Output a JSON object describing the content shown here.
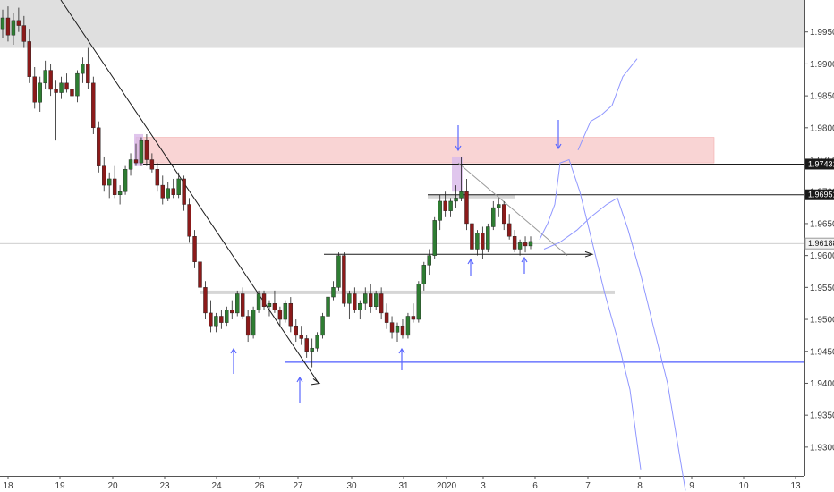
{
  "chart_data": {
    "type": "candlestick",
    "grid": false,
    "ylim": [
      1.9255,
      2.0
    ],
    "x_ticks": [
      "18",
      "19",
      "20",
      "23",
      "24",
      "26",
      "27",
      "30",
      "31",
      "2020",
      "3",
      "6",
      "7",
      "8",
      "9",
      "10",
      "13"
    ],
    "y_ticks": [
      "1.93000",
      "1.93500",
      "1.94000",
      "1.94500",
      "1.95000",
      "1.95500",
      "1.96000",
      "1.96500",
      "1.97000",
      "1.97500",
      "1.98000",
      "1.98500",
      "1.99000",
      "1.99500"
    ],
    "price_labels": [
      {
        "text": "1.97431",
        "value": 1.97431,
        "style": "dark"
      },
      {
        "text": "1.96951",
        "value": 1.96951,
        "style": "dark"
      },
      {
        "text": "1.96188",
        "value": 1.96188,
        "style": "light"
      }
    ],
    "candles": [
      [
        1.9955,
        1.9985,
        1.994,
        1.9972
      ],
      [
        1.9972,
        1.999,
        1.9935,
        1.9945
      ],
      [
        1.9945,
        1.998,
        1.993,
        1.9968
      ],
      [
        1.9968,
        1.9988,
        1.995,
        1.996
      ],
      [
        1.996,
        1.9975,
        1.9925,
        1.9935
      ],
      [
        1.9935,
        1.9955,
        1.987,
        1.988
      ],
      [
        1.988,
        1.9895,
        1.983,
        1.984
      ],
      [
        1.984,
        1.988,
        1.9825,
        1.987
      ],
      [
        1.987,
        1.9905,
        1.986,
        1.989
      ],
      [
        1.989,
        1.99,
        1.985,
        1.986
      ],
      [
        1.986,
        1.9875,
        1.978,
        1.9855
      ],
      [
        1.9855,
        1.988,
        1.9845,
        1.987
      ],
      [
        1.987,
        1.9885,
        1.9855,
        1.986
      ],
      [
        1.986,
        1.987,
        1.9845,
        1.985
      ],
      [
        1.985,
        1.989,
        1.984,
        1.9885
      ],
      [
        1.9885,
        1.991,
        1.987,
        1.99
      ],
      [
        1.99,
        1.9925,
        1.986,
        1.987
      ],
      [
        1.987,
        1.988,
        1.979,
        1.98
      ],
      [
        1.98,
        1.981,
        1.973,
        1.974
      ],
      [
        1.974,
        1.9755,
        1.97,
        1.971
      ],
      [
        1.971,
        1.973,
        1.969,
        1.972
      ],
      [
        1.972,
        1.974,
        1.969,
        1.9695
      ],
      [
        1.9695,
        1.971,
        1.968,
        1.97
      ],
      [
        1.97,
        1.974,
        1.9695,
        1.9735
      ],
      [
        1.9735,
        1.976,
        1.9725,
        1.975
      ],
      [
        1.975,
        1.9775,
        1.974,
        1.9745
      ],
      [
        1.9745,
        1.9785,
        1.974,
        1.978
      ],
      [
        1.978,
        1.979,
        1.974,
        1.975
      ],
      [
        1.975,
        1.976,
        1.973,
        1.9735
      ],
      [
        1.9735,
        1.9745,
        1.97,
        1.971
      ],
      [
        1.971,
        1.9725,
        1.968,
        1.969
      ],
      [
        1.969,
        1.9715,
        1.9685,
        1.9705
      ],
      [
        1.9705,
        1.972,
        1.969,
        1.9695
      ],
      [
        1.9695,
        1.973,
        1.969,
        1.972
      ],
      [
        1.972,
        1.9725,
        1.967,
        1.968
      ],
      [
        1.968,
        1.969,
        1.962,
        1.963
      ],
      [
        1.963,
        1.964,
        1.958,
        1.959
      ],
      [
        1.959,
        1.96,
        1.954,
        1.955
      ],
      [
        1.955,
        1.956,
        1.95,
        1.951
      ],
      [
        1.951,
        1.953,
        1.948,
        1.949
      ],
      [
        1.949,
        1.951,
        1.948,
        1.9505
      ],
      [
        1.9505,
        1.9515,
        1.9485,
        1.9495
      ],
      [
        1.9495,
        1.952,
        1.949,
        1.9515
      ],
      [
        1.9515,
        1.953,
        1.95,
        1.951
      ],
      [
        1.951,
        1.9545,
        1.9505,
        1.954
      ],
      [
        1.954,
        1.955,
        1.95,
        1.9505
      ],
      [
        1.9505,
        1.9515,
        1.9465,
        1.9475
      ],
      [
        1.9475,
        1.952,
        1.947,
        1.9515
      ],
      [
        1.9515,
        1.9545,
        1.951,
        1.954
      ],
      [
        1.954,
        1.9545,
        1.9515,
        1.952
      ],
      [
        1.952,
        1.953,
        1.9505,
        1.9525
      ],
      [
        1.9525,
        1.9545,
        1.951,
        1.9515
      ],
      [
        1.9515,
        1.952,
        1.949,
        1.95
      ],
      [
        1.95,
        1.953,
        1.9495,
        1.9525
      ],
      [
        1.9525,
        1.9535,
        1.948,
        1.949
      ],
      [
        1.949,
        1.95,
        1.9465,
        1.9475
      ],
      [
        1.9475,
        1.949,
        1.946,
        1.947
      ],
      [
        1.947,
        1.9475,
        1.944,
        1.945
      ],
      [
        1.945,
        1.947,
        1.9425,
        1.9455
      ],
      [
        1.9455,
        1.948,
        1.945,
        1.9475
      ],
      [
        1.9475,
        1.951,
        1.947,
        1.9505
      ],
      [
        1.9505,
        1.954,
        1.95,
        1.9535
      ],
      [
        1.9535,
        1.956,
        1.953,
        1.955
      ],
      [
        1.955,
        1.9605,
        1.9545,
        1.96
      ],
      [
        1.96,
        1.9605,
        1.952,
        1.9525
      ],
      [
        1.9525,
        1.9545,
        1.95,
        1.954
      ],
      [
        1.954,
        1.955,
        1.951,
        1.9515
      ],
      [
        1.9515,
        1.953,
        1.95,
        1.9525
      ],
      [
        1.9525,
        1.955,
        1.9515,
        1.954
      ],
      [
        1.954,
        1.9555,
        1.951,
        1.952
      ],
      [
        1.952,
        1.9545,
        1.9515,
        1.954
      ],
      [
        1.954,
        1.955,
        1.95,
        1.951
      ],
      [
        1.951,
        1.9525,
        1.9485,
        1.9495
      ],
      [
        1.9495,
        1.9505,
        1.947,
        1.948
      ],
      [
        1.948,
        1.9495,
        1.9465,
        1.949
      ],
      [
        1.949,
        1.95,
        1.947,
        1.9475
      ],
      [
        1.9475,
        1.951,
        1.947,
        1.9505
      ],
      [
        1.9505,
        1.9525,
        1.9495,
        1.95
      ],
      [
        1.95,
        1.956,
        1.9495,
        1.9555
      ],
      [
        1.9555,
        1.959,
        1.9545,
        1.9585
      ],
      [
        1.9585,
        1.961,
        1.957,
        1.96
      ],
      [
        1.96,
        1.966,
        1.9595,
        1.9655
      ],
      [
        1.9655,
        1.9695,
        1.964,
        1.9685
      ],
      [
        1.9685,
        1.97,
        1.966,
        1.967
      ],
      [
        1.967,
        1.969,
        1.966,
        1.9685
      ],
      [
        1.9685,
        1.971,
        1.9675,
        1.969
      ],
      [
        1.969,
        1.9755,
        1.9685,
        1.97
      ],
      [
        1.97,
        1.972,
        1.964,
        1.965
      ],
      [
        1.965,
        1.966,
        1.96,
        1.961
      ],
      [
        1.961,
        1.964,
        1.96,
        1.9635
      ],
      [
        1.9635,
        1.9645,
        1.9595,
        1.961
      ],
      [
        1.961,
        1.965,
        1.9605,
        1.9645
      ],
      [
        1.9645,
        1.9685,
        1.964,
        1.9675
      ],
      [
        1.9675,
        1.969,
        1.966,
        1.968
      ],
      [
        1.968,
        1.9685,
        1.964,
        1.965
      ],
      [
        1.965,
        1.9665,
        1.9625,
        1.963
      ],
      [
        1.963,
        1.964,
        1.9605,
        1.961
      ],
      [
        1.961,
        1.9625,
        1.96,
        1.962
      ],
      [
        1.962,
        1.963,
        1.9605,
        1.9615
      ],
      [
        1.9615,
        1.963,
        1.961,
        1.9622
      ]
    ]
  },
  "price_axis_labels_shown": [
    "1.97431",
    "1.96951",
    "1.96188"
  ]
}
